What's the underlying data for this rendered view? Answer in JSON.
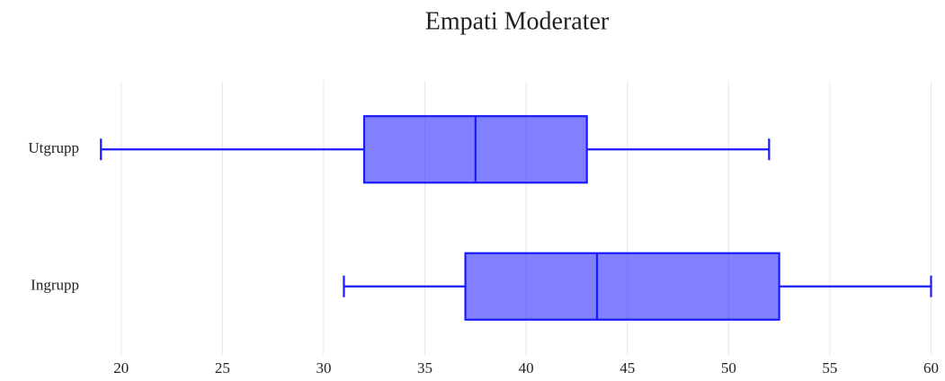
{
  "chart_data": {
    "type": "box",
    "title": "Empati Moderater",
    "orientation": "horizontal",
    "categories": [
      "Utgrupp",
      "Ingrupp"
    ],
    "boxes": [
      {
        "min": 19,
        "q1": 32,
        "median": 37.5,
        "q3": 43,
        "max": 52
      },
      {
        "min": 31,
        "q1": 37,
        "median": 43.5,
        "q3": 52.5,
        "max": 60
      }
    ],
    "color": "#1a1aff",
    "xlim": [
      18.9,
      60.2
    ],
    "xticks": [
      20,
      25,
      30,
      35,
      40,
      45,
      50,
      55,
      60
    ],
    "grid": true
  }
}
